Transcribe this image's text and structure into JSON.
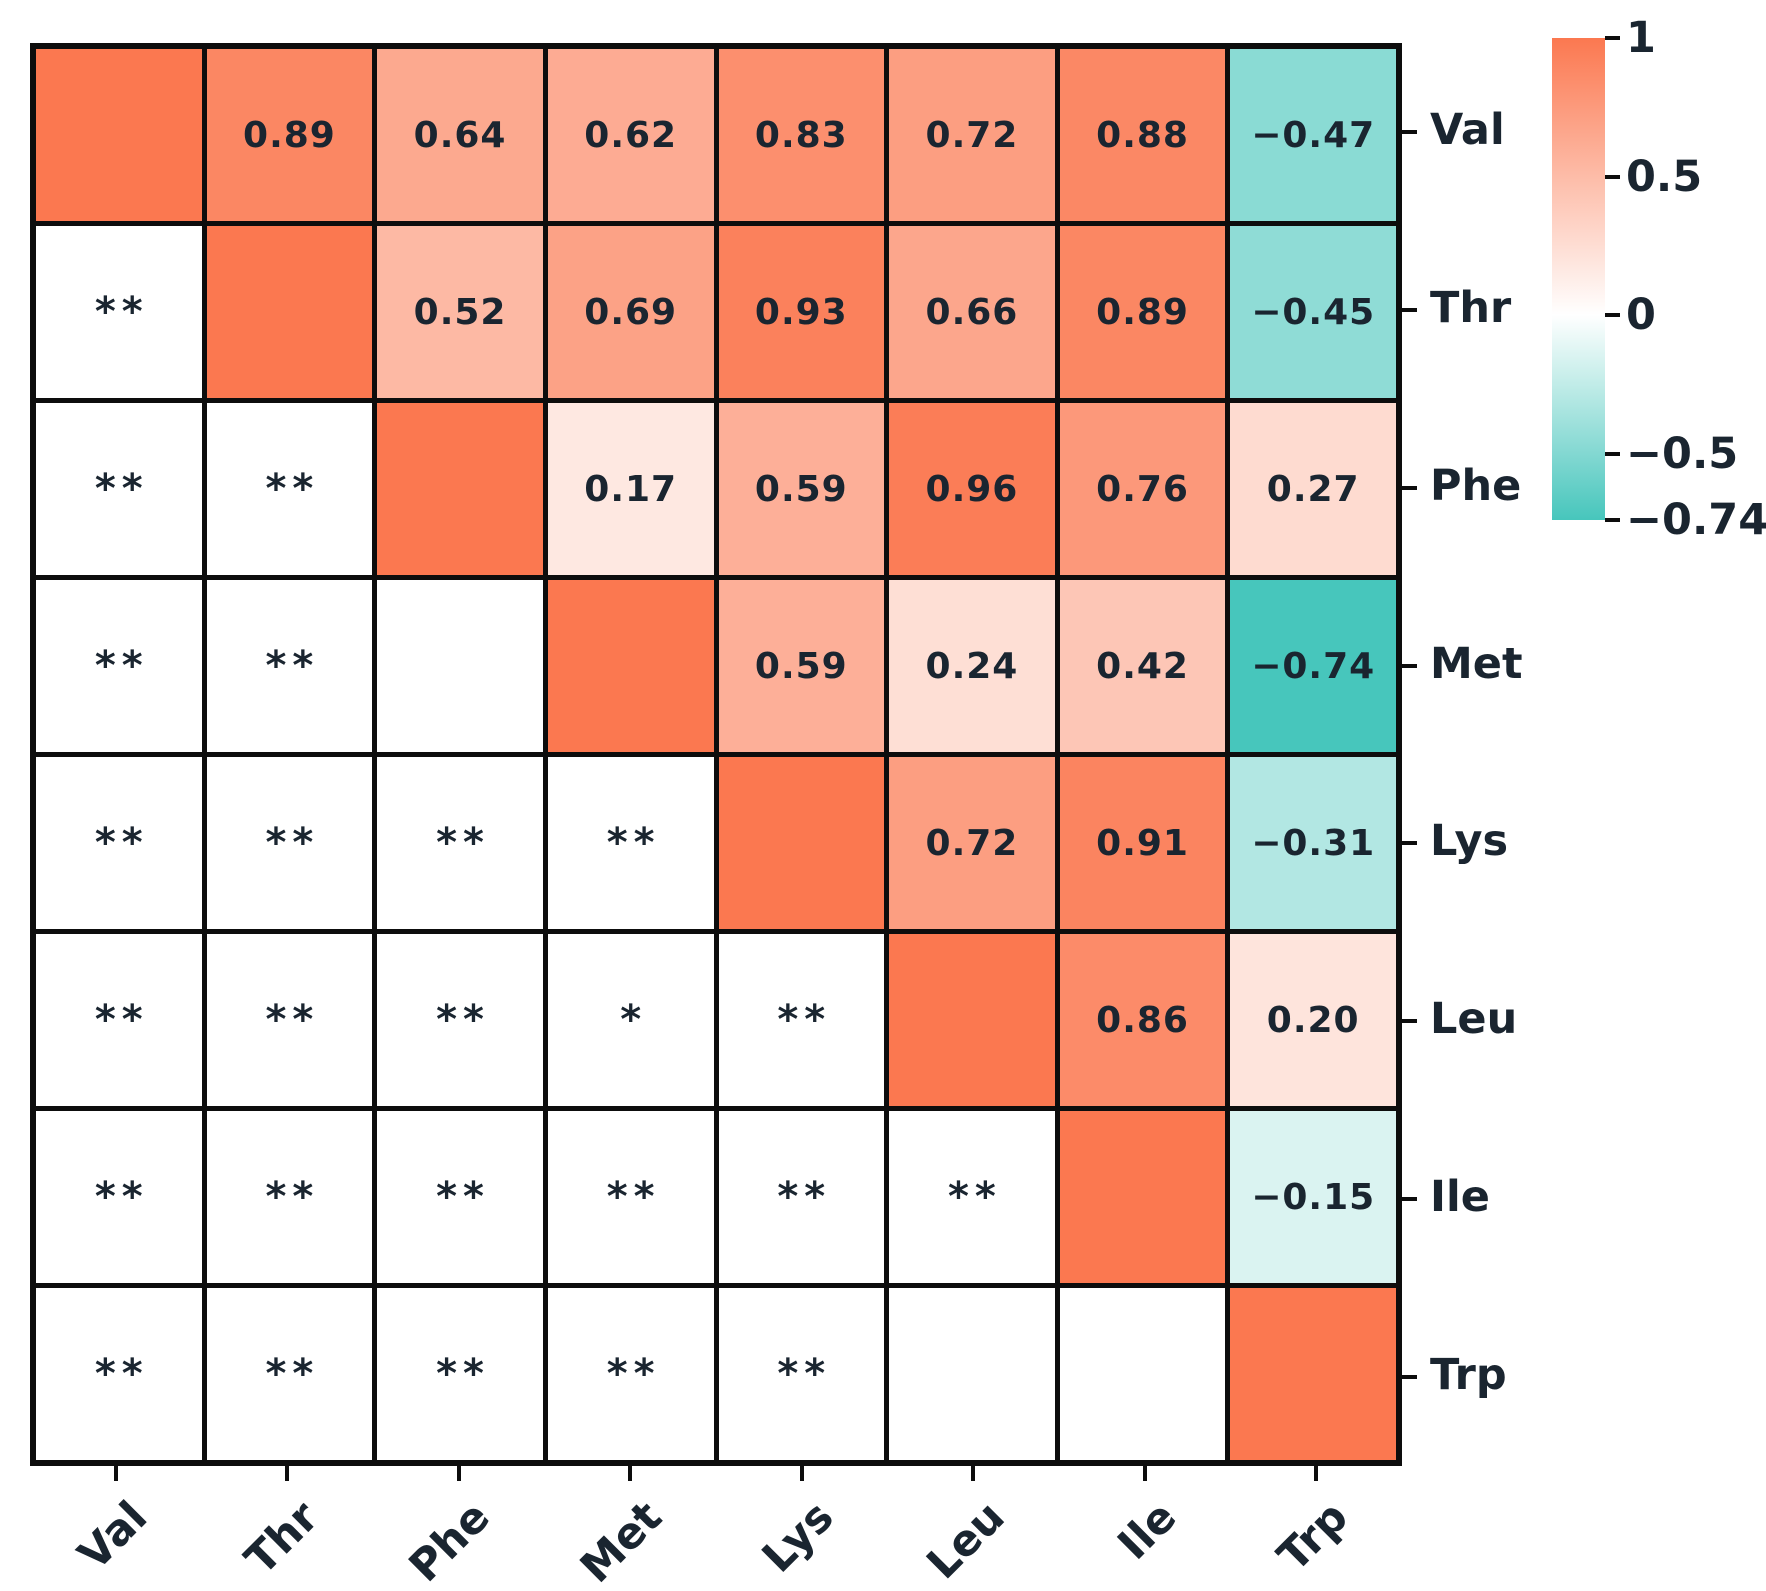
{
  "chart_data": {
    "type": "heatmap",
    "title": "",
    "description": "Correlation matrix of amino acids; upper triangle shows correlation coefficients colored by value, lower triangle shows significance stars, diagonal is self-correlation (1).",
    "variables": [
      "Val",
      "Thr",
      "Phe",
      "Met",
      "Lys",
      "Leu",
      "Ile",
      "Trp"
    ],
    "cells": [
      [
        {
          "type": "diag",
          "value": 1
        },
        {
          "type": "corr",
          "value": 0.89,
          "label": "0.89"
        },
        {
          "type": "corr",
          "value": 0.64,
          "label": "0.64"
        },
        {
          "type": "corr",
          "value": 0.62,
          "label": "0.62"
        },
        {
          "type": "corr",
          "value": 0.83,
          "label": "0.83"
        },
        {
          "type": "corr",
          "value": 0.72,
          "label": "0.72"
        },
        {
          "type": "corr",
          "value": 0.88,
          "label": "0.88"
        },
        {
          "type": "corr",
          "value": -0.47,
          "label": "−0.47"
        }
      ],
      [
        {
          "type": "sig",
          "label": "**"
        },
        {
          "type": "diag",
          "value": 1
        },
        {
          "type": "corr",
          "value": 0.52,
          "label": "0.52"
        },
        {
          "type": "corr",
          "value": 0.69,
          "label": "0.69"
        },
        {
          "type": "corr",
          "value": 0.93,
          "label": "0.93"
        },
        {
          "type": "corr",
          "value": 0.66,
          "label": "0.66"
        },
        {
          "type": "corr",
          "value": 0.89,
          "label": "0.89"
        },
        {
          "type": "corr",
          "value": -0.45,
          "label": "−0.45"
        }
      ],
      [
        {
          "type": "sig",
          "label": "**"
        },
        {
          "type": "sig",
          "label": "**"
        },
        {
          "type": "diag",
          "value": 1
        },
        {
          "type": "corr",
          "value": 0.17,
          "label": "0.17"
        },
        {
          "type": "corr",
          "value": 0.59,
          "label": "0.59"
        },
        {
          "type": "corr",
          "value": 0.96,
          "label": "0.96"
        },
        {
          "type": "corr",
          "value": 0.76,
          "label": "0.76"
        },
        {
          "type": "corr",
          "value": 0.27,
          "label": "0.27"
        }
      ],
      [
        {
          "type": "sig",
          "label": "**"
        },
        {
          "type": "sig",
          "label": "**"
        },
        {
          "type": "blank",
          "label": ""
        },
        {
          "type": "diag",
          "value": 1
        },
        {
          "type": "corr",
          "value": 0.59,
          "label": "0.59"
        },
        {
          "type": "corr",
          "value": 0.24,
          "label": "0.24"
        },
        {
          "type": "corr",
          "value": 0.42,
          "label": "0.42"
        },
        {
          "type": "corr",
          "value": -0.74,
          "label": "−0.74"
        }
      ],
      [
        {
          "type": "sig",
          "label": "**"
        },
        {
          "type": "sig",
          "label": "**"
        },
        {
          "type": "sig",
          "label": "**"
        },
        {
          "type": "sig",
          "label": "**"
        },
        {
          "type": "diag",
          "value": 1
        },
        {
          "type": "corr",
          "value": 0.72,
          "label": "0.72"
        },
        {
          "type": "corr",
          "value": 0.91,
          "label": "0.91"
        },
        {
          "type": "corr",
          "value": -0.31,
          "label": "−0.31"
        }
      ],
      [
        {
          "type": "sig",
          "label": "**"
        },
        {
          "type": "sig",
          "label": "**"
        },
        {
          "type": "sig",
          "label": "**"
        },
        {
          "type": "sig",
          "label": "*"
        },
        {
          "type": "sig",
          "label": "**"
        },
        {
          "type": "diag",
          "value": 1
        },
        {
          "type": "corr",
          "value": 0.86,
          "label": "0.86"
        },
        {
          "type": "corr",
          "value": 0.2,
          "label": "0.20"
        }
      ],
      [
        {
          "type": "sig",
          "label": "**"
        },
        {
          "type": "sig",
          "label": "**"
        },
        {
          "type": "sig",
          "label": "**"
        },
        {
          "type": "sig",
          "label": "**"
        },
        {
          "type": "sig",
          "label": "**"
        },
        {
          "type": "sig",
          "label": "**"
        },
        {
          "type": "diag",
          "value": 1
        },
        {
          "type": "corr",
          "value": -0.15,
          "label": "−0.15"
        }
      ],
      [
        {
          "type": "sig",
          "label": "**"
        },
        {
          "type": "sig",
          "label": "**"
        },
        {
          "type": "sig",
          "label": "**"
        },
        {
          "type": "sig",
          "label": "**"
        },
        {
          "type": "sig",
          "label": "**"
        },
        {
          "type": "blank",
          "label": ""
        },
        {
          "type": "blank",
          "label": ""
        },
        {
          "type": "diag",
          "value": 1
        }
      ]
    ],
    "colorbar": {
      "domain_max": 1,
      "domain_min": -0.74,
      "ticks": [
        {
          "label": "1",
          "value": 1
        },
        {
          "label": "0.5",
          "value": 0.5
        },
        {
          "label": "0",
          "value": 0
        },
        {
          "label": "−0.5",
          "value": -0.5
        },
        {
          "label": "−0.74",
          "value": -0.74
        }
      ]
    },
    "colors": {
      "positive": "#FB7850",
      "negative": "#47C6BC",
      "zero": "#FFFFFF",
      "blank_cell": "#FFFFFF",
      "grid": "#0D0D0D",
      "text": "#1A2530"
    },
    "legend_position": "right",
    "grid": true
  }
}
